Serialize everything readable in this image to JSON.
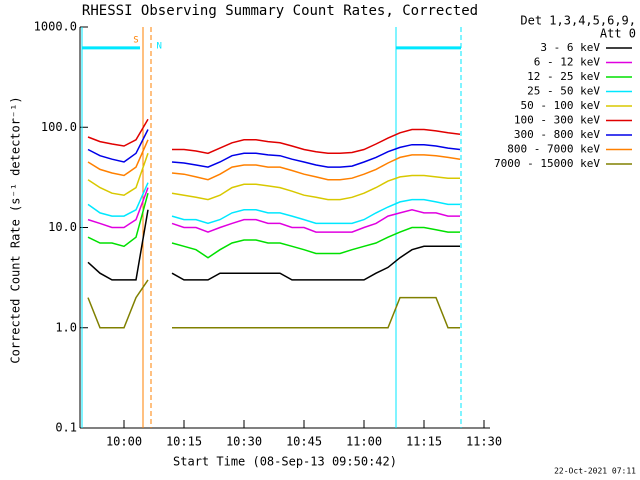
{
  "chart_data": {
    "type": "line",
    "title": "RHESSI Observing Summary Count Rates, Corrected",
    "x_label": "Start Time (08-Sep-13 09:50:42)",
    "y_label": "Corrected Count Rate (s⁻¹ detector⁻¹)",
    "legend_header": [
      "Det 1,3,4,5,6,9,",
      "Att 0"
    ],
    "footer": "22-Oct-2021 07:11",
    "log_y": true,
    "legend_position": "right",
    "xlim": [
      589,
      691.5
    ],
    "ylim": [
      0.1,
      1000
    ],
    "xticks": [
      {
        "value": 600,
        "label": "10:00"
      },
      {
        "value": 615,
        "label": "10:15"
      },
      {
        "value": 630,
        "label": "10:30"
      },
      {
        "value": 645,
        "label": "10:45"
      },
      {
        "value": 660,
        "label": "11:00"
      },
      {
        "value": 675,
        "label": "11:15"
      },
      {
        "value": 690,
        "label": "11:30"
      }
    ],
    "yticks": [
      0.1,
      {
        "value": 1,
        "label": "1.0"
      },
      {
        "value": 10,
        "label": "10.0"
      },
      {
        "value": 100,
        "label": "100.0"
      },
      {
        "value": 1000,
        "label": "1000.0"
      }
    ],
    "x": [
      591,
      594,
      597,
      600,
      603,
      606,
      609,
      612,
      615,
      618,
      621,
      624,
      627,
      630,
      633,
      636,
      639,
      642,
      645,
      648,
      651,
      654,
      657,
      660,
      663,
      666,
      669,
      672,
      675,
      678,
      681,
      684,
      687,
      690
    ],
    "series": [
      {
        "name": "3 - 6 keV",
        "color": "#000000",
        "values": [
          4.5,
          3.5,
          3,
          3,
          3,
          15,
          null,
          3.5,
          3,
          3,
          3,
          3.5,
          3.5,
          3.5,
          3.5,
          3.5,
          3.5,
          3,
          3,
          3,
          3,
          3,
          3,
          3,
          3.5,
          4,
          5,
          6,
          6.5,
          6.5,
          6.5,
          6.5,
          null,
          null
        ]
      },
      {
        "name": "6 - 12 keV",
        "color": "#e000e0",
        "values": [
          12,
          11,
          10,
          10,
          12,
          25,
          null,
          11,
          10,
          10,
          9,
          10,
          11,
          12,
          12,
          11,
          11,
          10,
          10,
          9,
          9,
          9,
          9,
          10,
          11,
          13,
          14,
          15,
          14,
          14,
          13,
          13,
          null,
          null
        ]
      },
      {
        "name": "12 - 25 keV",
        "color": "#00e000",
        "values": [
          8,
          7,
          7,
          6.5,
          8,
          22,
          null,
          7,
          6.5,
          6,
          5,
          6,
          7,
          7.5,
          7.5,
          7,
          7,
          6.5,
          6,
          5.5,
          5.5,
          5.5,
          6,
          6.5,
          7,
          8,
          9,
          10,
          10,
          9.5,
          9,
          9,
          null,
          null
        ]
      },
      {
        "name": "25 - 50 keV",
        "color": "#00e8ff",
        "values": [
          17,
          14,
          13,
          13,
          15,
          28,
          null,
          13,
          12,
          12,
          11,
          12,
          14,
          15,
          15,
          14,
          14,
          13,
          12,
          11,
          11,
          11,
          11,
          12,
          14,
          16,
          18,
          19,
          19,
          18,
          17,
          17,
          null,
          null
        ]
      },
      {
        "name": "50 - 100 keV",
        "color": "#d8c800",
        "values": [
          30,
          25,
          22,
          21,
          25,
          55,
          null,
          22,
          21,
          20,
          19,
          21,
          25,
          27,
          27,
          26,
          25,
          23,
          21,
          20,
          19,
          19,
          20,
          22,
          25,
          29,
          32,
          33,
          33,
          32,
          31,
          31,
          null,
          null
        ]
      },
      {
        "name": "100 - 300 keV",
        "color": "#e00000",
        "values": [
          80,
          72,
          68,
          65,
          75,
          120,
          null,
          60,
          60,
          58,
          55,
          62,
          70,
          75,
          75,
          72,
          70,
          65,
          60,
          57,
          55,
          55,
          56,
          60,
          68,
          78,
          88,
          95,
          95,
          92,
          88,
          85,
          null,
          null
        ]
      },
      {
        "name": "300 - 800 keV",
        "color": "#0000e8",
        "values": [
          60,
          52,
          48,
          45,
          55,
          95,
          null,
          45,
          44,
          42,
          40,
          45,
          52,
          55,
          55,
          53,
          52,
          48,
          45,
          42,
          40,
          40,
          41,
          45,
          50,
          57,
          63,
          67,
          67,
          65,
          62,
          60,
          null,
          null
        ]
      },
      {
        "name": "800 - 7000 keV",
        "color": "#ff8000",
        "values": [
          45,
          38,
          35,
          33,
          40,
          75,
          null,
          35,
          34,
          32,
          30,
          34,
          40,
          42,
          42,
          40,
          40,
          37,
          34,
          32,
          30,
          30,
          31,
          34,
          38,
          44,
          50,
          53,
          53,
          52,
          50,
          48,
          null,
          null
        ]
      },
      {
        "name": "7000 - 15000 keV",
        "color": "#808000",
        "values": [
          2,
          1,
          1,
          1,
          2,
          3,
          null,
          1,
          1,
          1,
          1,
          1,
          1,
          1,
          1,
          1,
          1,
          1,
          1,
          1,
          1,
          1,
          1,
          1,
          1,
          1,
          2,
          2,
          2,
          2,
          1,
          1,
          null,
          null
        ]
      }
    ],
    "night_bars": [
      {
        "x": [
          589.5,
          604
        ],
        "y": 620,
        "color": "#00e8ff"
      },
      {
        "x": [
          668,
          684.25
        ],
        "y": 620,
        "color": "#00e8ff"
      }
    ],
    "event_lines": [
      {
        "x": 589.5,
        "color": "#00e8ff",
        "dashed": false
      },
      {
        "x": 668,
        "color": "#00e8ff",
        "dashed": false
      },
      {
        "x": 684.25,
        "color": "#00e8ff",
        "dashed": true
      },
      {
        "x": 604.75,
        "color": "#ff8000",
        "dashed": false
      },
      {
        "x": 606.75,
        "color": "#ff8000",
        "dashed": true
      }
    ],
    "annotations": [
      {
        "text": "S",
        "x": 603,
        "color": "#ff8000"
      },
      {
        "text": "N",
        "x": 608.8,
        "color": "#00e8ff"
      }
    ]
  }
}
